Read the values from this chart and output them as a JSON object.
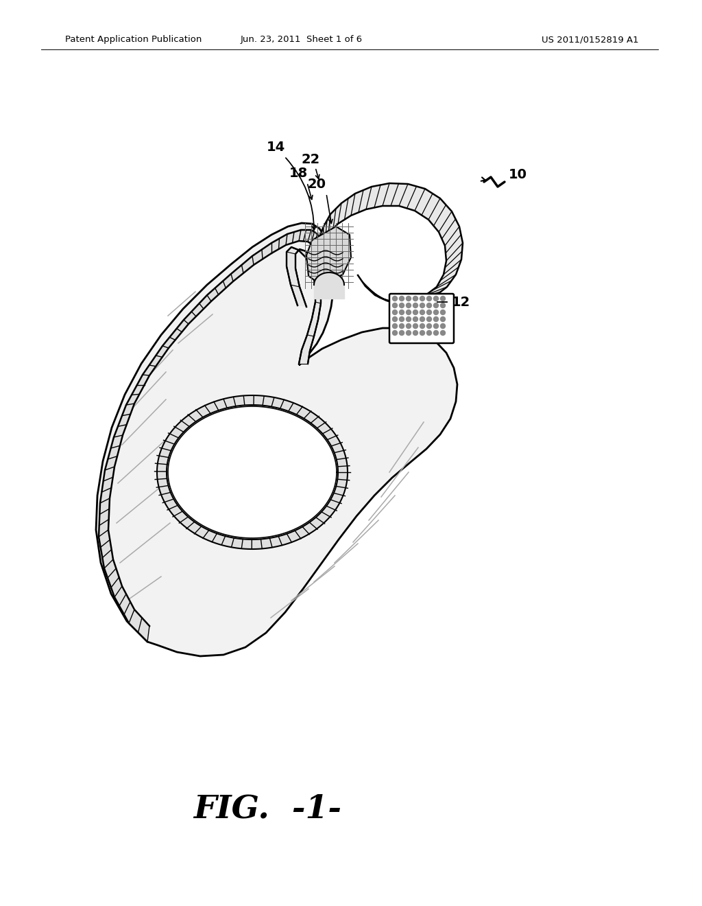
{
  "background_color": "#ffffff",
  "line_color": "#000000",
  "header_left": "Patent Application Publication",
  "header_center": "Jun. 23, 2011  Sheet 1 of 6",
  "header_right": "US 2011/0152819 A1",
  "fig_label": "FIG.  -1-",
  "body_fill": "#f2f2f2",
  "seam_fill": "#e0e0e0",
  "hook_fill": "#d0d0d0",
  "tab_fill": "#e8e8e8"
}
